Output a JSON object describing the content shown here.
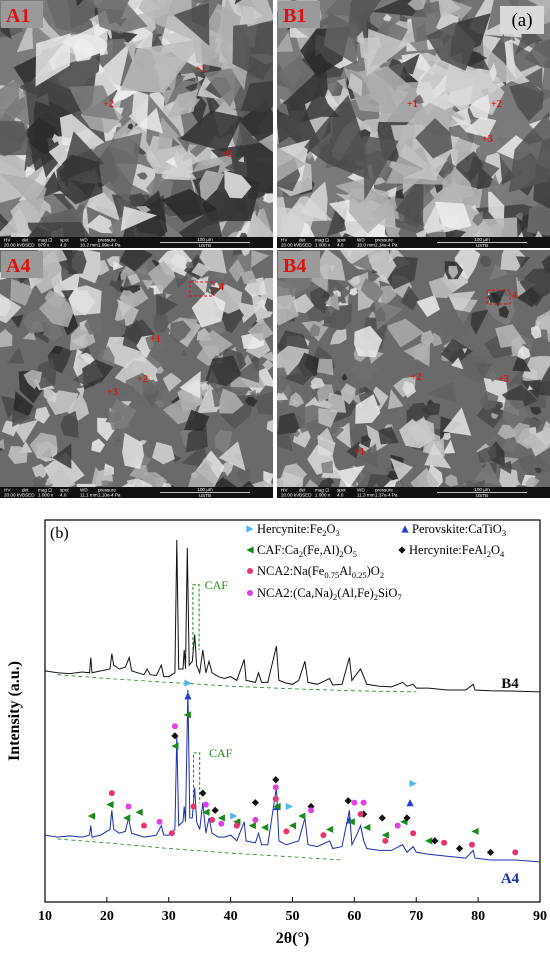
{
  "micrographs": {
    "panel_label": "(a)",
    "info_headers": [
      "HV",
      "det",
      "mag ⊡",
      "spot",
      "WD",
      "pressure"
    ],
    "scale": "100 µm",
    "lab": "USTB",
    "panels": [
      {
        "label": "A1",
        "points": [
          "+1",
          "+2",
          "+3"
        ],
        "info": [
          "20.00 kV",
          "BSED",
          "979 x",
          "4.0",
          "10.2 mm",
          "1.99e-4 Pa"
        ]
      },
      {
        "label": "B1",
        "points": [
          "+1",
          "+2",
          "+3"
        ],
        "info": [
          "20.00 kV",
          "BSED",
          "1 000 x",
          "4.0",
          "10.0 mm",
          "2.14e-4 Pa"
        ]
      },
      {
        "label": "A4",
        "points": [
          "+1",
          "+2",
          "+3",
          "4"
        ],
        "info": [
          "20.00 kV",
          "BSED",
          "1 000 x",
          "4.0",
          "11.1 mm",
          "1.10e-4 Pa"
        ]
      },
      {
        "label": "B4",
        "points": [
          "+1",
          "+2",
          "+3",
          "4"
        ],
        "info": [
          "20.00 kV",
          "BSED",
          "1 000 x",
          "4.0",
          "11.3 mm",
          "1.37e-4 Pa"
        ]
      }
    ]
  },
  "chart_data": {
    "type": "line",
    "panel_label": "(b)",
    "x_label": "2θ(°)",
    "y_label": "Intensity (a.u.)",
    "xlim": [
      10,
      90
    ],
    "xticks": [
      10,
      20,
      30,
      40,
      50,
      60,
      70,
      80,
      90
    ],
    "ylim": [
      0,
      100
    ],
    "series": [
      {
        "name": "B4",
        "color": "#111111",
        "x": [
          10,
          12,
          14,
          16,
          17.2,
          17.4,
          17.6,
          19,
          20.5,
          20.8,
          21.1,
          22,
          23,
          23.6,
          24,
          25,
          26,
          26.5,
          27,
          28,
          28.8,
          29.2,
          30,
          31,
          31.3,
          31.6,
          32.3,
          32.5,
          32.7,
          33,
          33.3,
          33.8,
          34.2,
          34.5,
          35,
          35.5,
          36,
          36.5,
          37,
          38,
          39,
          40,
          41,
          42.2,
          42.5,
          44,
          44.5,
          45,
          46,
          47.4,
          47.8,
          49,
          50,
          51,
          52,
          52.5,
          54,
          56,
          56.5,
          58,
          59.2,
          59.6,
          60.5,
          61,
          61.5,
          62,
          64,
          66,
          67.8,
          68.5,
          69.5,
          70,
          72,
          75,
          78,
          79.2,
          79.5,
          82,
          86,
          90
        ],
        "values": [
          60.5,
          60,
          59.8,
          60.2,
          60,
          64,
          60,
          60.5,
          61,
          65,
          62,
          61,
          61.5,
          64,
          60.5,
          60,
          59.5,
          61,
          59.5,
          59.3,
          62,
          59,
          59,
          60,
          94.8,
          61,
          61,
          66,
          61,
          92.7,
          62,
          63,
          70,
          62,
          60,
          66,
          60,
          63,
          60,
          59,
          58.5,
          59,
          58,
          63.5,
          58,
          57.5,
          60,
          57.5,
          57.5,
          67,
          58,
          57.3,
          57,
          58,
          63,
          57.5,
          57,
          58.5,
          56.8,
          57,
          64,
          58,
          60,
          61,
          59,
          57,
          56.5,
          56.3,
          57.5,
          56.5,
          57,
          56,
          56,
          55.5,
          55.5,
          57,
          55.5,
          55.3,
          55.2,
          55
        ]
      },
      {
        "name": "A4",
        "color": "#1a2fb0",
        "x": [
          10,
          12,
          14,
          16,
          17.2,
          17.4,
          17.6,
          19,
          20.5,
          20.8,
          21.1,
          22,
          23,
          23.5,
          24,
          25,
          26,
          27,
          28,
          28.8,
          29.2,
          30,
          31,
          31.3,
          31.6,
          32.3,
          32.5,
          32.7,
          33.1,
          33.4,
          33.8,
          34.2,
          34.5,
          35,
          35.5,
          36,
          36.5,
          37,
          38,
          39,
          40,
          41,
          42.2,
          42.5,
          44,
          44.5,
          45,
          46,
          47.4,
          47.8,
          49,
          50,
          51,
          52,
          52.5,
          54,
          56,
          56.5,
          58,
          59.2,
          59.6,
          60.5,
          61,
          61.5,
          62,
          64,
          66,
          67.8,
          68.5,
          69.5,
          70,
          72,
          75,
          78,
          79.2,
          79.5,
          82,
          86,
          90
        ],
        "values": [
          17.5,
          17,
          17.3,
          17,
          17.5,
          20,
          17,
          17.5,
          19,
          24,
          19,
          18,
          18.5,
          22,
          18,
          17.5,
          17,
          17.2,
          17.5,
          20,
          17.5,
          17.5,
          19,
          43.7,
          20,
          21,
          25,
          21,
          55.5,
          22,
          22,
          30,
          21,
          19,
          26,
          18,
          22,
          18,
          17,
          17,
          17.5,
          16,
          21,
          16,
          15.5,
          18,
          15,
          15,
          30,
          16,
          15,
          15.5,
          16,
          22,
          15,
          14.5,
          16,
          14,
          14.5,
          24,
          15,
          18,
          20,
          16,
          14,
          13.5,
          13.5,
          15,
          13,
          14.5,
          13,
          12.5,
          12,
          11.5,
          13.5,
          11.5,
          11,
          11,
          10.5
        ]
      }
    ],
    "background_lines": [
      {
        "x": [
          12,
          20,
          30,
          40,
          50,
          60,
          70
        ],
        "values": [
          59.5,
          58.5,
          57.5,
          56.5,
          55.8,
          55.3,
          55
        ]
      },
      {
        "x": [
          12,
          20,
          30,
          40,
          50,
          58
        ],
        "values": [
          16.5,
          15.5,
          14,
          12.8,
          11.8,
          11
        ]
      }
    ],
    "phases": [
      {
        "name_parts": [
          "Hercynite:Fe",
          "2",
          "O",
          "3"
        ],
        "color": "#4db8f0",
        "marker": "triangle-right",
        "x": [
          33.1,
          40.5,
          49.5,
          69.5
        ],
        "values": [
          57.3,
          22.5,
          25,
          31
        ]
      },
      {
        "name_parts": [
          "Perovskite:CaTiO",
          "3"
        ],
        "color": "#1f3fd6",
        "marker": "triangle-up",
        "x": [
          33.1,
          47.5,
          59.2,
          69
        ],
        "values": [
          54,
          25,
          21.5,
          26
        ]
      },
      {
        "name_parts": [
          "CAF:Ca",
          "2",
          "(Fe,Al)",
          "2",
          "O",
          "5"
        ],
        "color": "#1a8a1a",
        "marker": "triangle-left",
        "x": [
          17.5,
          20.5,
          23.2,
          25.2,
          31,
          33,
          36,
          38.5,
          41,
          43.5,
          45.5,
          47.5,
          50,
          51.5,
          56,
          59.5,
          62,
          65,
          68,
          72,
          79.5
        ],
        "values": [
          22.5,
          25.5,
          22,
          23.5,
          40.8,
          49,
          23.5,
          22,
          21,
          20,
          19.5,
          25,
          20,
          22.5,
          19,
          21,
          19.5,
          17.5,
          21,
          16,
          18.5
        ]
      },
      {
        "name_parts": [
          "Hercynite:FeAl",
          "2",
          "O",
          "4"
        ],
        "color": "#111111",
        "marker": "diamond",
        "x": [
          31,
          35.5,
          37.5,
          44,
          47.3,
          53,
          59,
          61.5,
          64.5,
          68.5,
          73,
          77,
          82
        ],
        "values": [
          43.5,
          28.5,
          24,
          26,
          32,
          25,
          26.5,
          23,
          22,
          22,
          16,
          14,
          13
        ]
      },
      {
        "name_parts": [
          "NCA2:Na(Fe",
          "0.75",
          "Al",
          "0.25",
          ")O",
          "2"
        ],
        "color": "#e8336d",
        "marker": "circle",
        "x": [
          20.8,
          26,
          30.5,
          34,
          37,
          41,
          47.3,
          49,
          55,
          61,
          65,
          69.5,
          74.5,
          79,
          86
        ],
        "values": [
          28.5,
          20,
          18,
          25,
          21.5,
          20,
          27,
          18.5,
          17.5,
          23,
          16,
          18,
          15.5,
          15,
          13
        ]
      },
      {
        "name_parts": [
          "NCA2:(Ca,Na)",
          "2",
          "(Al,Fe)",
          "2",
          "SiO",
          "7"
        ],
        "color": "#e040e0",
        "marker": "circle",
        "x": [
          23.5,
          28.5,
          31,
          36,
          38.5,
          44,
          47.3,
          53,
          60,
          61.5,
          67
        ],
        "values": [
          25,
          21,
          46,
          25.5,
          20.5,
          21.5,
          30,
          24,
          26,
          26,
          20
        ]
      }
    ],
    "annotations": [
      "CAF",
      "CAF"
    ]
  }
}
